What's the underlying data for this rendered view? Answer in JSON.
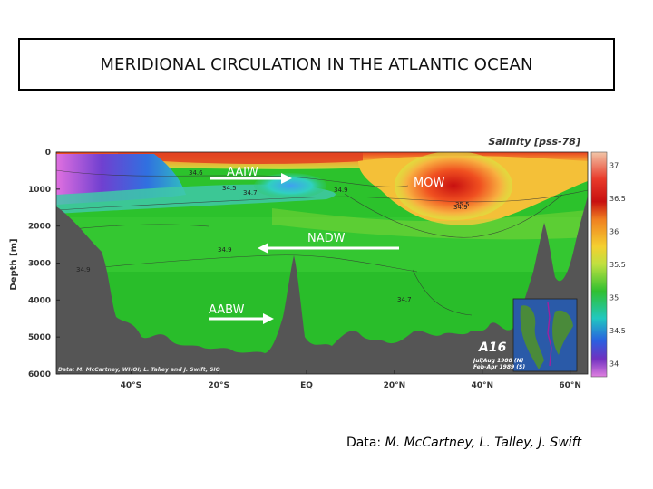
{
  "slide": {
    "title": "MERIDIONAL CIRCULATION IN THE ATLANTIC OCEAN",
    "credit_prefix": "Data:",
    "credit_names": "M. McCartney, L. Talley, J. Swift"
  },
  "chart_data": {
    "type": "heatmap",
    "title": "Salinity [pss-78]",
    "ylabel": "Depth [m]",
    "xlabel": "",
    "x_ticks": [
      "40°S",
      "20°S",
      "EQ",
      "20°N",
      "40°N",
      "60°N"
    ],
    "x_tick_values": [
      -40,
      -20,
      0,
      20,
      40,
      60
    ],
    "xlim": [
      -57,
      64
    ],
    "y_ticks": [
      "0",
      "1000",
      "2000",
      "3000",
      "4000",
      "5000",
      "6000"
    ],
    "y_tick_values": [
      0,
      1000,
      2000,
      3000,
      4000,
      5000,
      6000
    ],
    "ylim": [
      6000,
      0
    ],
    "colorbar_ticks": [
      "37",
      "36.5",
      "36",
      "35.5",
      "35",
      "34.5",
      "34"
    ],
    "colorbar_values": [
      37,
      36.5,
      36,
      35.5,
      35,
      34.5,
      34
    ],
    "contour_labels": [
      "34.6",
      "34.5",
      "34.7",
      "34.9",
      "34.9",
      "34.9",
      "34.7",
      "34.9",
      "35.5"
    ],
    "annotations": {
      "section": "A16",
      "dates": "Jul/Aug 1988 (N)\nFeb-Apr 1989 (S)",
      "source": "Data: M. McCartney, WHOI; L. Talley and J. Swift, SIO"
    },
    "water_masses": [
      {
        "label": "AAIW",
        "direction": "north",
        "depth": 900
      },
      {
        "label": "MOW",
        "direction": "none",
        "depth": 900
      },
      {
        "label": "NADW",
        "direction": "south",
        "depth": 2600
      },
      {
        "label": "AABW",
        "direction": "north",
        "depth": 4400
      }
    ],
    "colors": {
      "seafloor": "#555555",
      "deep_water": "#22c422",
      "high_salinity": "#e83020",
      "low_salinity": "#3060e0"
    }
  }
}
